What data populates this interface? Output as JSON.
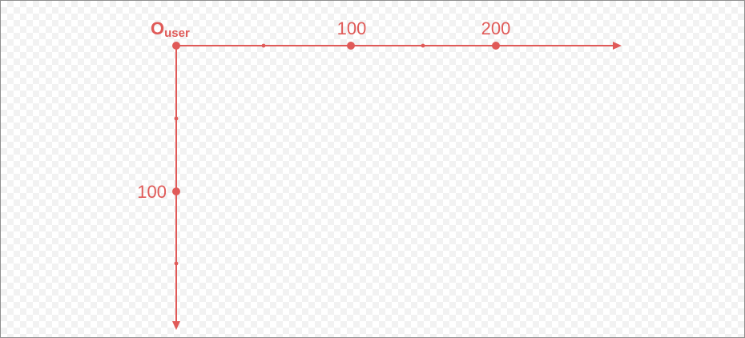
{
  "diagram": {
    "origin_label": "O",
    "origin_subscript": "user",
    "x_axis": {
      "major_tick_labels": [
        "100",
        "200"
      ],
      "major_tick_values": [
        100,
        200
      ],
      "minor_tick_values": [
        50,
        150
      ]
    },
    "y_axis": {
      "major_tick_labels": [
        "100"
      ],
      "major_tick_values": [
        100
      ],
      "minor_tick_values": [
        50,
        150
      ]
    },
    "colors": {
      "axis": "#e05a58",
      "border": "#8f8f8f",
      "checker_light": "#ffffff",
      "checker_dark": "#f2f2f2"
    }
  }
}
